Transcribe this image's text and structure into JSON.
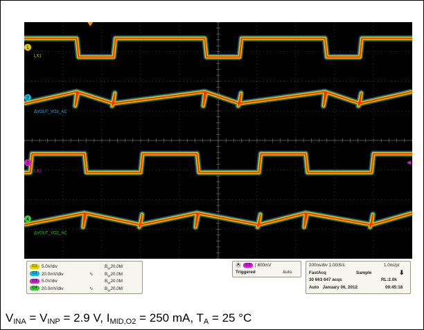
{
  "chart_data": {
    "type": "line",
    "xlabel": "",
    "ylabel": "",
    "grid": true,
    "x_divisions": 10,
    "y_divisions": 8,
    "series": [
      {
        "name": "LX1",
        "marker": "1",
        "color": "#e3d000",
        "kind": "square",
        "level_div": 0.85,
        "high_div": 0.55,
        "low_div": 1.18,
        "low_intervals": [
          [
            1.35,
            2.3
          ],
          [
            4.65,
            5.55
          ],
          [
            7.75,
            8.65
          ]
        ]
      },
      {
        "name": "ΔVOUT_VO1_AC",
        "marker": "2",
        "color": "#19b8d8",
        "kind": "ripple",
        "level_div": 2.55,
        "amp_div": 0.22,
        "kinks": [
          1.35,
          2.3,
          4.65,
          5.55,
          7.75,
          8.65
        ]
      },
      {
        "name": "LX2",
        "marker": "3",
        "color": "#d020d0",
        "kind": "square",
        "level_div": 4.75,
        "high_div": 4.45,
        "low_div": 5.08,
        "low_intervals": [
          [
            0.0,
            0.15
          ],
          [
            1.55,
            3.0
          ],
          [
            4.45,
            6.05
          ],
          [
            7.25,
            8.95
          ]
        ]
      },
      {
        "name": "ΔVOUT_VO2_AC",
        "marker": "4",
        "color": "#33cc33",
        "kind": "ripple",
        "level_div": 6.65,
        "amp_div": 0.22,
        "kinks": [
          1.55,
          3.0,
          4.45,
          6.05,
          7.25,
          8.95
        ]
      }
    ]
  },
  "status": {
    "channels": [
      {
        "num": "C1",
        "scale": "5.0V/div",
        "bw": "20.0M",
        "color": "#e3d000"
      },
      {
        "num": "C2",
        "scale": "20.0mV/div",
        "bw": "20.0M",
        "color": "#19b8d8"
      },
      {
        "num": "C3",
        "scale": "5.0V/div",
        "bw": "20.0M",
        "color": "#d020d0"
      },
      {
        "num": "C4",
        "scale": "20.0mV/div",
        "bw": "20.0M",
        "color": "#33cc33"
      }
    ],
    "bw_prefix": "B",
    "bw_sub": "W",
    "trigger": {
      "label": "A",
      "channel": "C3",
      "level": "800mV",
      "state": "Triggered",
      "mode": "Auto"
    },
    "timebase": {
      "hscale": "200ns/div",
      "rate": "1.0GS/s",
      "pt": "1.0ns/pt",
      "acq": "FastAcq",
      "sample": "Sample",
      "count": "30 663 647 acqs",
      "rl": "RL:2.0k",
      "auto": "Auto",
      "date": "January 06, 2012",
      "time": "09:45:18"
    }
  },
  "caption": {
    "v_ina": "V",
    "v_ina_sub": "INA",
    "eq1": " = ",
    "v_inp": "V",
    "v_inp_sub": "INP",
    "val1": " = 2.9 V, ",
    "i_mid": "I",
    "i_mid_sub": "MID,O2",
    "val2": " = 250 mA, ",
    "t_a": "T",
    "t_a_sub": "A",
    "val3": " = 25 °C"
  }
}
